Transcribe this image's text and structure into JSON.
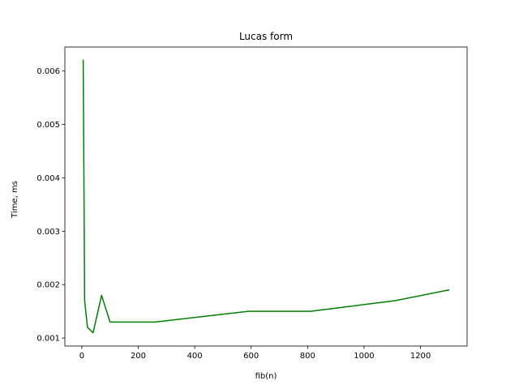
{
  "chart_data": {
    "type": "line",
    "title": "Lucas form",
    "xlabel": "fib(n)",
    "ylabel": "Time, ms",
    "xlim": [
      -60,
      1365
    ],
    "ylim": [
      0.00085,
      0.00645
    ],
    "xticks": [
      0,
      200,
      400,
      600,
      800,
      1000,
      1200
    ],
    "yticks": [
      0.001,
      0.002,
      0.003,
      0.004,
      0.005,
      0.006
    ],
    "ytick_labels": [
      "0.001",
      "0.002",
      "0.003",
      "0.004",
      "0.005",
      "0.006"
    ],
    "grid": false,
    "series": [
      {
        "color": "#008000",
        "x": [
          5,
          10,
          20,
          40,
          70,
          100,
          260,
          590,
          810,
          1110,
          1300
        ],
        "y": [
          0.0062,
          0.0017,
          0.0012,
          0.0011,
          0.0018,
          0.0013,
          0.0013,
          0.0015,
          0.0015,
          0.0017,
          0.0019
        ]
      }
    ]
  }
}
